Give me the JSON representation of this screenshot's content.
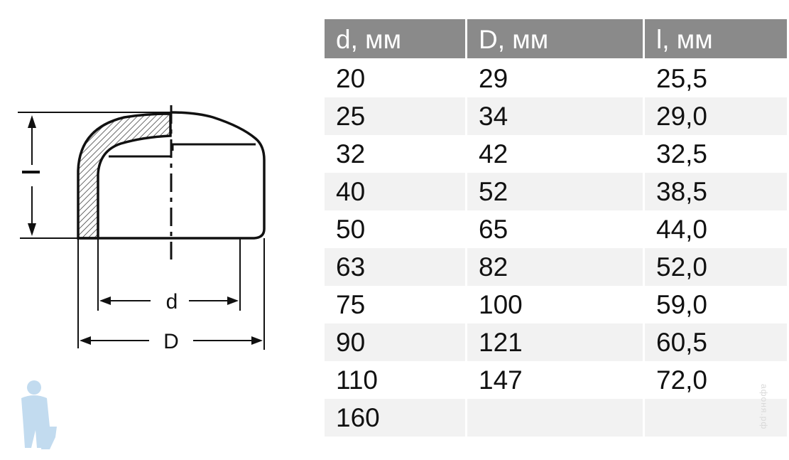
{
  "diagram": {
    "label_l": "l",
    "label_d": "d",
    "label_D": "D"
  },
  "table": {
    "headers": [
      "d, мм",
      "D, мм",
      "l, мм"
    ],
    "rows": [
      [
        "20",
        "29",
        "25,5"
      ],
      [
        "25",
        "34",
        "29,0"
      ],
      [
        "32",
        "42",
        "32,5"
      ],
      [
        "40",
        "52",
        "38,5"
      ],
      [
        "50",
        "65",
        "44,0"
      ],
      [
        "63",
        "82",
        "52,0"
      ],
      [
        "75",
        "100",
        "59,0"
      ],
      [
        "90",
        "121",
        "60,5"
      ],
      [
        "110",
        "147",
        "72,0"
      ],
      [
        "160",
        "",
        ""
      ]
    ]
  },
  "watermark": {
    "text": "афоня.рф",
    "icon": "plumber-logo-icon"
  },
  "colors": {
    "header_bg": "#8a8a8a",
    "alt_row_bg": "#f2f2f2",
    "logo": "#bcd8ee"
  }
}
